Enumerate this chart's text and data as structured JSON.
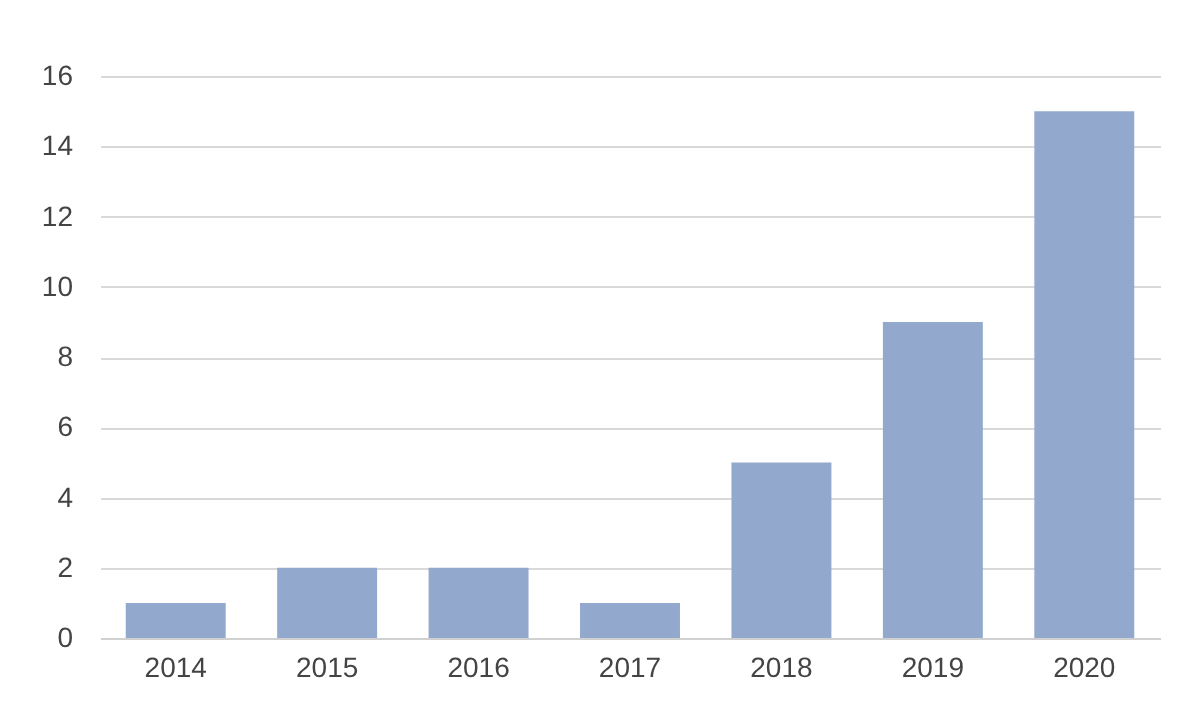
{
  "chart_data": {
    "type": "bar",
    "categories": [
      "2014",
      "2015",
      "2016",
      "2017",
      "2018",
      "2019",
      "2020"
    ],
    "values": [
      1,
      2,
      2,
      1,
      5,
      9,
      15
    ],
    "color": "#92a8cc",
    "ylim": [
      0,
      16
    ],
    "yticks": [
      0,
      2,
      4,
      6,
      8,
      10,
      12,
      14,
      16
    ],
    "grid": "y"
  }
}
